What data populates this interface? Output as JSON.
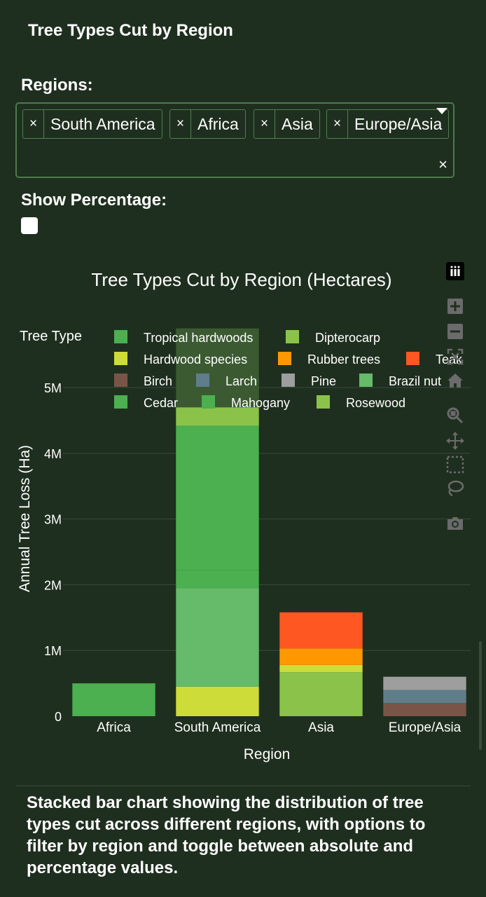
{
  "app": {
    "title": "Tree Types Cut by Region",
    "regions_label": "Regions:",
    "chips": [
      {
        "remove": "×",
        "label": "South America"
      },
      {
        "remove": "×",
        "label": "Africa"
      },
      {
        "remove": "×",
        "label": "Asia"
      },
      {
        "remove": "×",
        "label": "Europe/Asia"
      }
    ],
    "clear_all": "×",
    "show_percentage_label": "Show Percentage:",
    "description": "Stacked bar chart showing the distribution of tree types cut across different regions, with options to filter by region and toggle between absolute and percentage values."
  },
  "modebar": {
    "icons": [
      "plotly-logo-icon",
      "zoom-in-icon",
      "zoom-out-icon",
      "autoscale-icon",
      "home-icon",
      "zoom-icon",
      "pan-icon",
      "box-select-icon",
      "lasso-select-icon",
      "camera-icon"
    ]
  },
  "chart_data": {
    "type": "bar",
    "barmode": "stack",
    "title": "Tree Types Cut by Region (Hectares)",
    "xlabel": "Region",
    "ylabel": "Annual Tree Loss (Ha)",
    "legend_title": "Tree Type",
    "legend_placement": "top",
    "categories": [
      "Africa",
      "South America",
      "Asia",
      "Europe/Asia"
    ],
    "ylim": [
      0,
      5800000
    ],
    "yticks": [
      {
        "value": 0,
        "label": "0"
      },
      {
        "value": 1000000,
        "label": "1M"
      },
      {
        "value": 2000000,
        "label": "2M"
      },
      {
        "value": 3000000,
        "label": "3M"
      },
      {
        "value": 4000000,
        "label": "4M"
      },
      {
        "value": 5000000,
        "label": "5M"
      }
    ],
    "grid": true,
    "series": [
      {
        "name": "Tropical hardwoods",
        "color": "#4caf50",
        "values": [
          500000,
          0,
          0,
          0
        ]
      },
      {
        "name": "Dipterocarp",
        "color": "#8bc34a",
        "values": [
          0,
          0,
          670000,
          0
        ]
      },
      {
        "name": "Hardwood species",
        "color": "#cddc39",
        "values": [
          0,
          450000,
          110000,
          0
        ]
      },
      {
        "name": "Rubber trees",
        "color": "#ff9800",
        "values": [
          0,
          0,
          250000,
          0
        ]
      },
      {
        "name": "Teak",
        "color": "#ff5722",
        "values": [
          0,
          0,
          550000,
          0
        ]
      },
      {
        "name": "Birch",
        "color": "#795548",
        "values": [
          0,
          0,
          0,
          200000
        ]
      },
      {
        "name": "Larch",
        "color": "#607d8b",
        "values": [
          0,
          0,
          0,
          200000
        ]
      },
      {
        "name": "Pine",
        "color": "#9e9e9e",
        "values": [
          0,
          0,
          0,
          200000
        ]
      },
      {
        "name": "Brazil nut",
        "color": "#66bb6a",
        "values": [
          0,
          1500000,
          0,
          0
        ]
      },
      {
        "name": "Cedar",
        "color": "#4caf50",
        "values": [
          0,
          270000,
          0,
          0
        ]
      },
      {
        "name": "Mahogany",
        "color": "#4caf50",
        "values": [
          0,
          2200000,
          0,
          0
        ]
      },
      {
        "name": "Rosewood",
        "color": "#8bc34a",
        "values": [
          0,
          280000,
          0,
          0
        ]
      },
      {
        "name": "",
        "color": "#3b5a32",
        "values": [
          0,
          1200000,
          0,
          0
        ]
      }
    ]
  }
}
